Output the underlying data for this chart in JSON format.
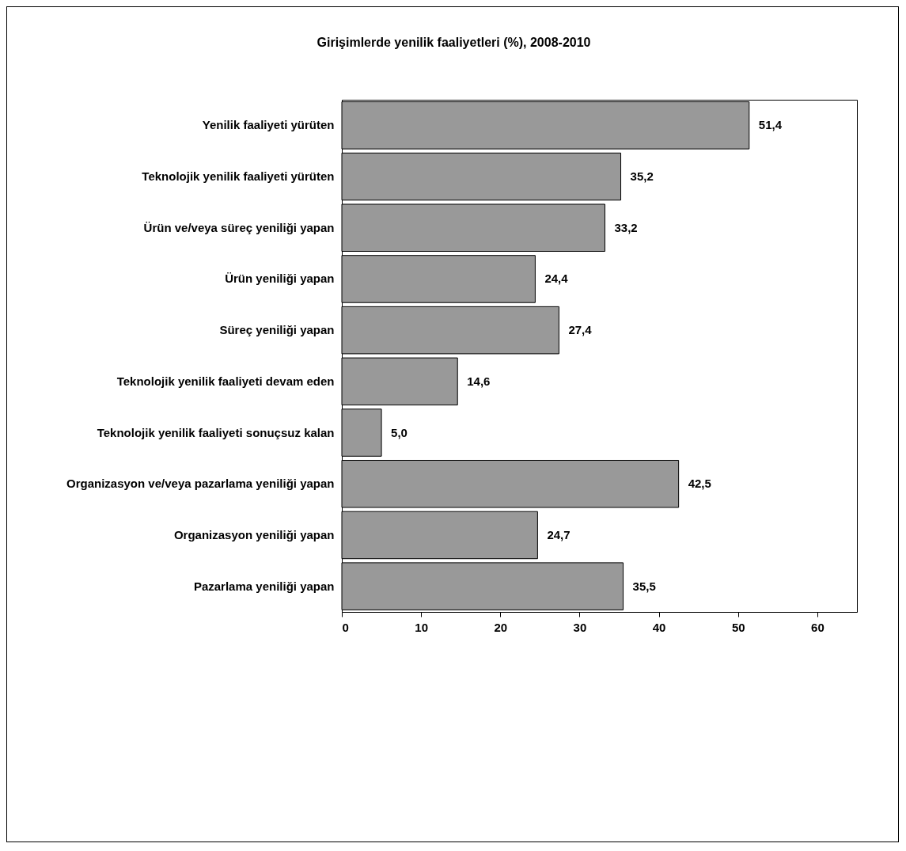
{
  "chart_data": {
    "type": "bar",
    "orientation": "horizontal",
    "title": "Girişimlerde yenilik faaliyetleri (%), 2008-2010",
    "categories": [
      "Yenilik faaliyeti yürüten",
      "Teknolojik yenilik faaliyeti yürüten",
      "Ürün ve/veya süreç yeniliği yapan",
      "Ürün yeniliği yapan",
      "Süreç yeniliği yapan",
      "Teknolojik yenilik faaliyeti devam eden",
      "Teknolojik yenilik faaliyeti sonuçsuz kalan",
      "Organizasyon ve/veya pazarlama yeniliği yapan",
      "Organizasyon yeniliği yapan",
      "Pazarlama yeniliği yapan"
    ],
    "values": [
      51.4,
      35.2,
      33.2,
      24.4,
      27.4,
      14.6,
      5.0,
      42.5,
      24.7,
      35.5
    ],
    "value_labels": [
      "51,4",
      "35,2",
      "33,2",
      "24,4",
      "27,4",
      "14,6",
      "5,0",
      "42,5",
      "24,7",
      "35,5"
    ],
    "color": "#999999",
    "xlim": [
      0,
      65
    ],
    "xticks": [
      0,
      10,
      20,
      30,
      40,
      50,
      60
    ],
    "grid": false
  }
}
